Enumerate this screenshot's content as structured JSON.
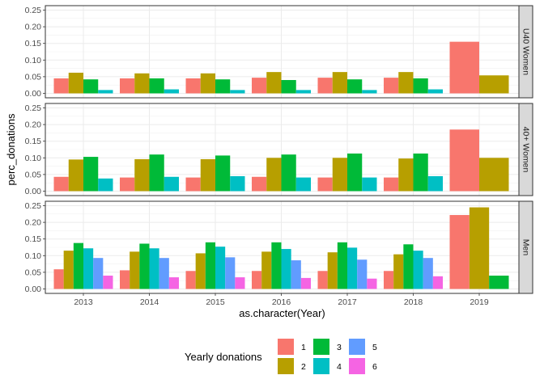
{
  "chart_data": {
    "type": "bar",
    "xlabel": "as.character(Year)",
    "ylabel": "perc_donations",
    "categories": [
      "2013",
      "2014",
      "2015",
      "2016",
      "2017",
      "2018",
      "2019"
    ],
    "ylim": [
      0,
      0.25
    ],
    "yticks": [
      "0.00",
      "0.05",
      "0.10",
      "0.15",
      "0.20",
      "0.25"
    ],
    "grid": true,
    "legend": {
      "title": "Yearly donations",
      "placement": "bottom",
      "entries": [
        "1",
        "2",
        "3",
        "4",
        "5",
        "6"
      ]
    },
    "colors": {
      "1": "#F8766D",
      "2": "#B79F00",
      "3": "#00BA38",
      "4": "#00BFC4",
      "5": "#619CFF",
      "6": "#F564E3"
    },
    "panels": [
      {
        "strip": "U40 Women",
        "series": [
          {
            "name": "1",
            "values": [
              0.045,
              0.045,
              0.045,
              0.047,
              0.047,
              0.047,
              0.155
            ]
          },
          {
            "name": "2",
            "values": [
              0.062,
              0.06,
              0.06,
              0.064,
              0.064,
              0.064,
              0.054
            ]
          },
          {
            "name": "3",
            "values": [
              0.042,
              0.045,
              0.042,
              0.04,
              0.042,
              0.045,
              null
            ]
          },
          {
            "name": "4",
            "values": [
              0.01,
              0.012,
              0.01,
              0.01,
              0.01,
              0.012,
              null
            ]
          },
          {
            "name": "5",
            "values": [
              null,
              null,
              null,
              null,
              null,
              null,
              null
            ]
          },
          {
            "name": "6",
            "values": [
              null,
              null,
              null,
              null,
              null,
              null,
              null
            ]
          }
        ]
      },
      {
        "strip": "40+ Women",
        "series": [
          {
            "name": "1",
            "values": [
              0.043,
              0.041,
              0.041,
              0.043,
              0.041,
              0.041,
              0.185
            ]
          },
          {
            "name": "2",
            "values": [
              0.095,
              0.096,
              0.096,
              0.1,
              0.1,
              0.098,
              0.1
            ]
          },
          {
            "name": "3",
            "values": [
              0.103,
              0.11,
              0.107,
              0.11,
              0.113,
              0.113,
              null
            ]
          },
          {
            "name": "4",
            "values": [
              0.038,
              0.043,
              0.045,
              0.041,
              0.041,
              0.045,
              null
            ]
          },
          {
            "name": "5",
            "values": [
              null,
              null,
              null,
              null,
              null,
              null,
              null
            ]
          },
          {
            "name": "6",
            "values": [
              null,
              null,
              null,
              null,
              null,
              null,
              null
            ]
          }
        ]
      },
      {
        "strip": "Men",
        "series": [
          {
            "name": "1",
            "values": [
              0.059,
              0.056,
              0.054,
              0.054,
              0.054,
              0.054,
              0.222
            ]
          },
          {
            "name": "2",
            "values": [
              0.115,
              0.112,
              0.107,
              0.112,
              0.11,
              0.104,
              0.245
            ]
          },
          {
            "name": "3",
            "values": [
              0.138,
              0.136,
              0.14,
              0.14,
              0.14,
              0.134,
              0.04
            ]
          },
          {
            "name": "4",
            "values": [
              0.122,
              0.122,
              0.127,
              0.12,
              0.124,
              0.115,
              null
            ]
          },
          {
            "name": "5",
            "values": [
              0.093,
              0.093,
              0.095,
              0.086,
              0.088,
              0.093,
              null
            ]
          },
          {
            "name": "6",
            "values": [
              0.04,
              0.035,
              0.035,
              0.033,
              0.031,
              0.038,
              null
            ]
          }
        ]
      }
    ]
  }
}
